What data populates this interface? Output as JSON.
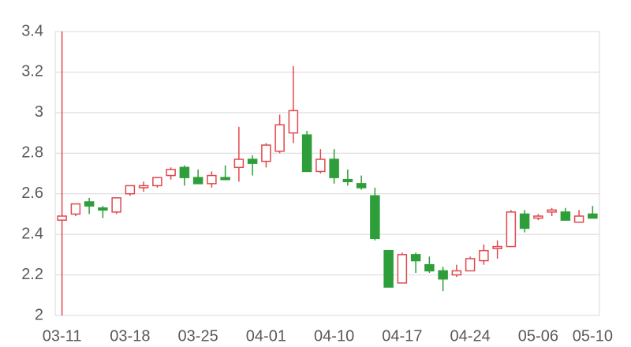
{
  "chart_data": {
    "type": "candlestick",
    "categories": [
      "03-11",
      null,
      null,
      null,
      null,
      "03-18",
      null,
      null,
      null,
      null,
      "03-25",
      null,
      null,
      null,
      null,
      "04-01",
      null,
      null,
      null,
      null,
      "04-10",
      null,
      null,
      null,
      null,
      "04-17",
      null,
      null,
      null,
      null,
      "04-24",
      null,
      null,
      null,
      null,
      "05-06",
      null,
      null,
      null,
      "05-10"
    ],
    "open": [
      2.47,
      2.5,
      2.56,
      2.53,
      2.51,
      2.6,
      2.63,
      2.64,
      2.69,
      2.73,
      2.68,
      2.65,
      2.68,
      2.73,
      2.77,
      2.76,
      2.81,
      2.9,
      2.89,
      2.71,
      2.77,
      2.67,
      2.65,
      2.59,
      2.32,
      2.16,
      2.3,
      2.25,
      2.22,
      2.2,
      2.22,
      2.27,
      2.33,
      2.34,
      2.5,
      2.48,
      2.51,
      2.51,
      2.46,
      2.5
    ],
    "high": [
      3.4,
      2.55,
      2.58,
      2.54,
      2.58,
      2.64,
      2.66,
      2.68,
      2.73,
      2.74,
      2.72,
      2.71,
      2.74,
      2.93,
      2.79,
      2.85,
      2.99,
      3.23,
      2.91,
      2.82,
      2.82,
      2.72,
      2.69,
      2.63,
      2.32,
      2.31,
      2.31,
      2.29,
      2.24,
      2.25,
      2.29,
      2.35,
      2.37,
      2.52,
      2.52,
      2.5,
      2.53,
      2.53,
      2.52,
      2.54
    ],
    "low": [
      2.0,
      2.49,
      2.5,
      2.48,
      2.5,
      2.59,
      2.61,
      2.63,
      2.67,
      2.64,
      2.65,
      2.63,
      2.67,
      2.66,
      2.69,
      2.73,
      2.8,
      2.85,
      2.71,
      2.7,
      2.65,
      2.64,
      2.62,
      2.37,
      2.14,
      2.16,
      2.21,
      2.21,
      2.12,
      2.19,
      2.22,
      2.25,
      2.28,
      2.34,
      2.41,
      2.47,
      2.49,
      2.47,
      2.46,
      2.48
    ],
    "close": [
      2.49,
      2.55,
      2.54,
      2.52,
      2.58,
      2.64,
      2.64,
      2.68,
      2.72,
      2.68,
      2.65,
      2.69,
      2.67,
      2.77,
      2.75,
      2.84,
      2.94,
      3.01,
      2.71,
      2.77,
      2.68,
      2.66,
      2.63,
      2.38,
      2.14,
      2.3,
      2.27,
      2.22,
      2.18,
      2.22,
      2.28,
      2.32,
      2.34,
      2.51,
      2.43,
      2.49,
      2.52,
      2.47,
      2.49,
      2.48
    ],
    "up_color": "#e0474c",
    "down_color": "#2e9e3a",
    "ylim": [
      2,
      3.4
    ],
    "yticks": [
      2,
      2.2,
      2.4,
      2.6,
      2.8,
      3,
      3.2,
      3.4
    ],
    "grid": true
  }
}
